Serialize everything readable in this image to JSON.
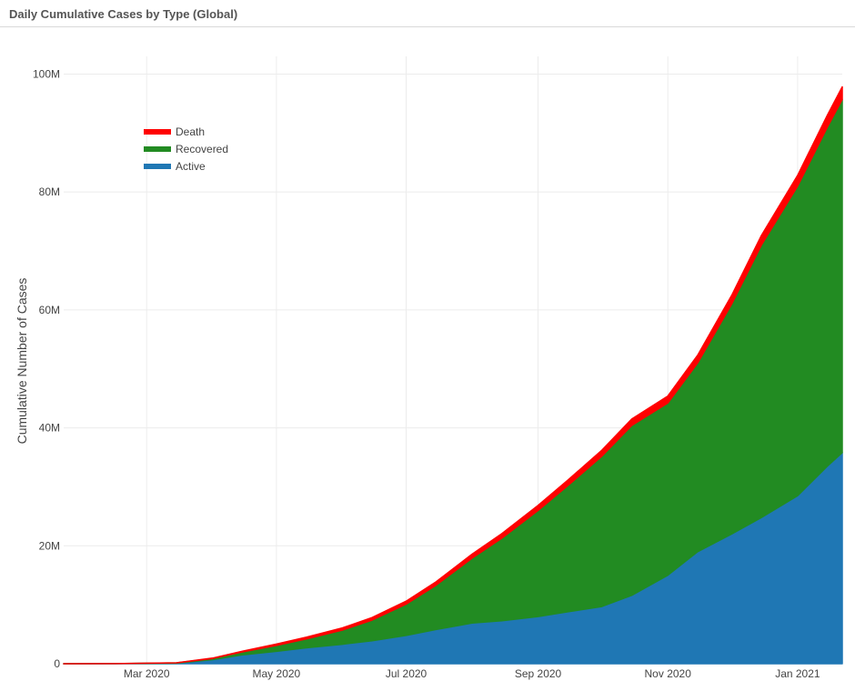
{
  "panel": {
    "title": "Daily Cumulative Cases by Type (Global)"
  },
  "chart_data": {
    "type": "area",
    "stacked": true,
    "title": "Daily Cumulative Cases by Type (Global)",
    "xlabel": "",
    "ylabel": "Cumulative Number of Cases",
    "x_ticks": [
      "Mar 2020",
      "May 2020",
      "Jul 2020",
      "Sep 2020",
      "Nov 2020",
      "Jan 2021"
    ],
    "x_tick_dates": [
      "2020-03-01",
      "2020-05-01",
      "2020-07-01",
      "2020-09-01",
      "2020-11-01",
      "2021-01-01"
    ],
    "y_ticks": [
      0,
      20000000,
      40000000,
      60000000,
      80000000,
      100000000
    ],
    "y_tick_labels": [
      "0",
      "20M",
      "40M",
      "60M",
      "80M",
      "100M"
    ],
    "xlim": [
      "2020-01-22",
      "2021-01-22"
    ],
    "ylim": [
      0,
      103000000
    ],
    "grid": true,
    "legend_position": "top-left",
    "x": [
      "2020-01-22",
      "2020-02-15",
      "2020-03-15",
      "2020-04-01",
      "2020-04-15",
      "2020-05-01",
      "2020-05-15",
      "2020-06-01",
      "2020-06-15",
      "2020-07-01",
      "2020-07-15",
      "2020-08-01",
      "2020-08-15",
      "2020-09-01",
      "2020-09-15",
      "2020-10-01",
      "2020-10-15",
      "2020-11-01",
      "2020-11-15",
      "2020-12-01",
      "2020-12-15",
      "2021-01-01",
      "2021-01-15",
      "2021-01-22"
    ],
    "series": [
      {
        "name": "Active",
        "color": "#1f77b4",
        "values": [
          0,
          10000,
          100000,
          700000,
          1500000,
          2100000,
          2700000,
          3300000,
          3900000,
          4800000,
          5800000,
          6900000,
          7300000,
          8000000,
          8800000,
          9700000,
          11600000,
          15000000,
          19000000,
          22000000,
          24800000,
          28500000,
          33500000,
          35800000
        ]
      },
      {
        "name": "Recovered",
        "color": "#228b22",
        "values": [
          0,
          5000,
          50000,
          200000,
          500000,
          1000000,
          1500000,
          2400000,
          3500000,
          5300000,
          7500000,
          11000000,
          14000000,
          18000000,
          21400000,
          25500000,
          28800000,
          29200000,
          32000000,
          39000000,
          46200000,
          52500000,
          57500000,
          59900000
        ]
      },
      {
        "name": "Death",
        "color": "#ff0000",
        "values": [
          0,
          2000,
          8000,
          50000,
          130000,
          230000,
          300000,
          370000,
          430000,
          510000,
          580000,
          680000,
          770000,
          860000,
          930000,
          1010000,
          1090000,
          1190000,
          1310000,
          1460000,
          1620000,
          1810000,
          2030000,
          2130000
        ]
      }
    ]
  }
}
